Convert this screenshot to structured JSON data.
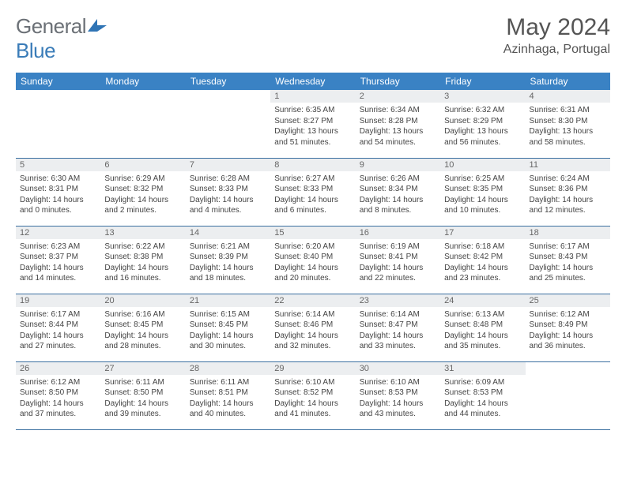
{
  "brand": {
    "general": "General",
    "blue": "Blue",
    "logo_color": "#2f74b5"
  },
  "header": {
    "month_year": "May 2024",
    "location": "Azinhaga, Portugal"
  },
  "colors": {
    "header_bg": "#3a82c4",
    "row_border": "#3a6fa0",
    "daynum_bg": "#eceef0"
  },
  "weekdays": [
    "Sunday",
    "Monday",
    "Tuesday",
    "Wednesday",
    "Thursday",
    "Friday",
    "Saturday"
  ],
  "weeks": [
    [
      {
        "n": "",
        "lines": []
      },
      {
        "n": "",
        "lines": []
      },
      {
        "n": "",
        "lines": []
      },
      {
        "n": "1",
        "lines": [
          "Sunrise: 6:35 AM",
          "Sunset: 8:27 PM",
          "Daylight: 13 hours",
          "and 51 minutes."
        ]
      },
      {
        "n": "2",
        "lines": [
          "Sunrise: 6:34 AM",
          "Sunset: 8:28 PM",
          "Daylight: 13 hours",
          "and 54 minutes."
        ]
      },
      {
        "n": "3",
        "lines": [
          "Sunrise: 6:32 AM",
          "Sunset: 8:29 PM",
          "Daylight: 13 hours",
          "and 56 minutes."
        ]
      },
      {
        "n": "4",
        "lines": [
          "Sunrise: 6:31 AM",
          "Sunset: 8:30 PM",
          "Daylight: 13 hours",
          "and 58 minutes."
        ]
      }
    ],
    [
      {
        "n": "5",
        "lines": [
          "Sunrise: 6:30 AM",
          "Sunset: 8:31 PM",
          "Daylight: 14 hours",
          "and 0 minutes."
        ]
      },
      {
        "n": "6",
        "lines": [
          "Sunrise: 6:29 AM",
          "Sunset: 8:32 PM",
          "Daylight: 14 hours",
          "and 2 minutes."
        ]
      },
      {
        "n": "7",
        "lines": [
          "Sunrise: 6:28 AM",
          "Sunset: 8:33 PM",
          "Daylight: 14 hours",
          "and 4 minutes."
        ]
      },
      {
        "n": "8",
        "lines": [
          "Sunrise: 6:27 AM",
          "Sunset: 8:33 PM",
          "Daylight: 14 hours",
          "and 6 minutes."
        ]
      },
      {
        "n": "9",
        "lines": [
          "Sunrise: 6:26 AM",
          "Sunset: 8:34 PM",
          "Daylight: 14 hours",
          "and 8 minutes."
        ]
      },
      {
        "n": "10",
        "lines": [
          "Sunrise: 6:25 AM",
          "Sunset: 8:35 PM",
          "Daylight: 14 hours",
          "and 10 minutes."
        ]
      },
      {
        "n": "11",
        "lines": [
          "Sunrise: 6:24 AM",
          "Sunset: 8:36 PM",
          "Daylight: 14 hours",
          "and 12 minutes."
        ]
      }
    ],
    [
      {
        "n": "12",
        "lines": [
          "Sunrise: 6:23 AM",
          "Sunset: 8:37 PM",
          "Daylight: 14 hours",
          "and 14 minutes."
        ]
      },
      {
        "n": "13",
        "lines": [
          "Sunrise: 6:22 AM",
          "Sunset: 8:38 PM",
          "Daylight: 14 hours",
          "and 16 minutes."
        ]
      },
      {
        "n": "14",
        "lines": [
          "Sunrise: 6:21 AM",
          "Sunset: 8:39 PM",
          "Daylight: 14 hours",
          "and 18 minutes."
        ]
      },
      {
        "n": "15",
        "lines": [
          "Sunrise: 6:20 AM",
          "Sunset: 8:40 PM",
          "Daylight: 14 hours",
          "and 20 minutes."
        ]
      },
      {
        "n": "16",
        "lines": [
          "Sunrise: 6:19 AM",
          "Sunset: 8:41 PM",
          "Daylight: 14 hours",
          "and 22 minutes."
        ]
      },
      {
        "n": "17",
        "lines": [
          "Sunrise: 6:18 AM",
          "Sunset: 8:42 PM",
          "Daylight: 14 hours",
          "and 23 minutes."
        ]
      },
      {
        "n": "18",
        "lines": [
          "Sunrise: 6:17 AM",
          "Sunset: 8:43 PM",
          "Daylight: 14 hours",
          "and 25 minutes."
        ]
      }
    ],
    [
      {
        "n": "19",
        "lines": [
          "Sunrise: 6:17 AM",
          "Sunset: 8:44 PM",
          "Daylight: 14 hours",
          "and 27 minutes."
        ]
      },
      {
        "n": "20",
        "lines": [
          "Sunrise: 6:16 AM",
          "Sunset: 8:45 PM",
          "Daylight: 14 hours",
          "and 28 minutes."
        ]
      },
      {
        "n": "21",
        "lines": [
          "Sunrise: 6:15 AM",
          "Sunset: 8:45 PM",
          "Daylight: 14 hours",
          "and 30 minutes."
        ]
      },
      {
        "n": "22",
        "lines": [
          "Sunrise: 6:14 AM",
          "Sunset: 8:46 PM",
          "Daylight: 14 hours",
          "and 32 minutes."
        ]
      },
      {
        "n": "23",
        "lines": [
          "Sunrise: 6:14 AM",
          "Sunset: 8:47 PM",
          "Daylight: 14 hours",
          "and 33 minutes."
        ]
      },
      {
        "n": "24",
        "lines": [
          "Sunrise: 6:13 AM",
          "Sunset: 8:48 PM",
          "Daylight: 14 hours",
          "and 35 minutes."
        ]
      },
      {
        "n": "25",
        "lines": [
          "Sunrise: 6:12 AM",
          "Sunset: 8:49 PM",
          "Daylight: 14 hours",
          "and 36 minutes."
        ]
      }
    ],
    [
      {
        "n": "26",
        "lines": [
          "Sunrise: 6:12 AM",
          "Sunset: 8:50 PM",
          "Daylight: 14 hours",
          "and 37 minutes."
        ]
      },
      {
        "n": "27",
        "lines": [
          "Sunrise: 6:11 AM",
          "Sunset: 8:50 PM",
          "Daylight: 14 hours",
          "and 39 minutes."
        ]
      },
      {
        "n": "28",
        "lines": [
          "Sunrise: 6:11 AM",
          "Sunset: 8:51 PM",
          "Daylight: 14 hours",
          "and 40 minutes."
        ]
      },
      {
        "n": "29",
        "lines": [
          "Sunrise: 6:10 AM",
          "Sunset: 8:52 PM",
          "Daylight: 14 hours",
          "and 41 minutes."
        ]
      },
      {
        "n": "30",
        "lines": [
          "Sunrise: 6:10 AM",
          "Sunset: 8:53 PM",
          "Daylight: 14 hours",
          "and 43 minutes."
        ]
      },
      {
        "n": "31",
        "lines": [
          "Sunrise: 6:09 AM",
          "Sunset: 8:53 PM",
          "Daylight: 14 hours",
          "and 44 minutes."
        ]
      },
      {
        "n": "",
        "lines": []
      }
    ]
  ]
}
